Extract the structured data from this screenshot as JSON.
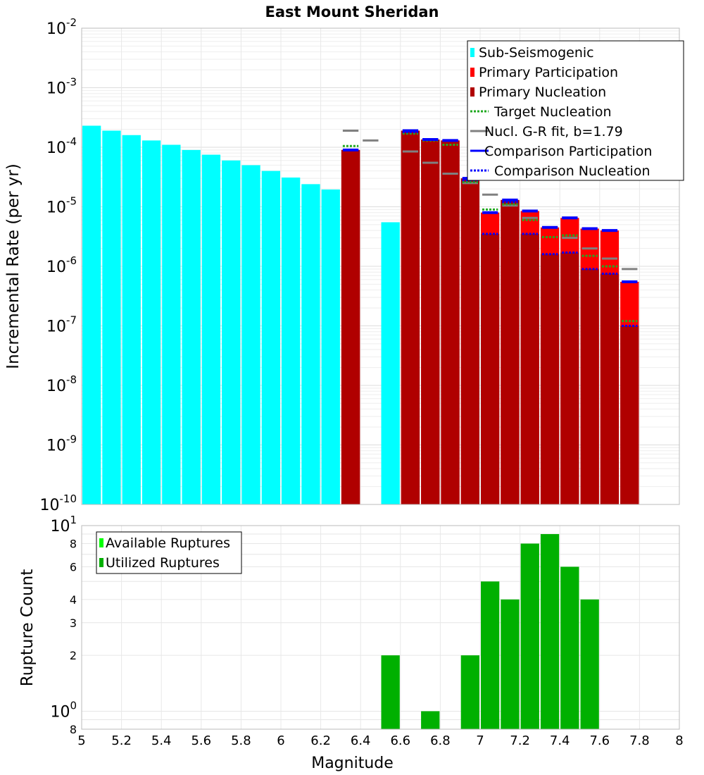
{
  "chart_data": [
    {
      "type": "bar",
      "title": "East Mount Sheridan",
      "xlabel": "Magnitude",
      "ylabel": "Incremental Rate (per yr)",
      "yscale": "log",
      "xlim": [
        5,
        8
      ],
      "ylim": [
        1e-10,
        0.01
      ],
      "x_ticks": [
        "5",
        "5.2",
        "5.4",
        "5.6",
        "5.8",
        "6",
        "6.2",
        "6.4",
        "6.6",
        "6.8",
        "7",
        "7.2",
        "7.4",
        "7.6",
        "7.8",
        "8"
      ],
      "y_ticks": [
        {
          "base": "10",
          "exp": "-10"
        },
        {
          "base": "10",
          "exp": "-9"
        },
        {
          "base": "10",
          "exp": "-8"
        },
        {
          "base": "10",
          "exp": "-7"
        },
        {
          "base": "10",
          "exp": "-6"
        },
        {
          "base": "10",
          "exp": "-5"
        },
        {
          "base": "10",
          "exp": "-4"
        },
        {
          "base": "10",
          "exp": "-3"
        },
        {
          "base": "10",
          "exp": "-2"
        }
      ],
      "legend": [
        {
          "label": "Sub-Seismogenic",
          "color": "#00ffff",
          "style": "bar"
        },
        {
          "label": "Primary Participation",
          "color": "#ff0000",
          "style": "bar"
        },
        {
          "label": "Primary Nucleation",
          "color": "#b00000",
          "style": "bar"
        },
        {
          "label": "Target Nucleation",
          "color": "#22aa22",
          "style": "dotted"
        },
        {
          "label": "Nucl. G-R fit, b=1.79",
          "color": "#808080",
          "style": "line"
        },
        {
          "label": "Comparison Participation",
          "color": "#0000ff",
          "style": "line"
        },
        {
          "label": "Comparison Nucleation",
          "color": "#0000ff",
          "style": "dotted"
        }
      ],
      "legend_position": "top-right",
      "sub_seismogenic": {
        "x": [
          5.05,
          5.15,
          5.25,
          5.35,
          5.45,
          5.55,
          5.65,
          5.75,
          5.85,
          5.95,
          6.05,
          6.15,
          6.25,
          6.55
        ],
        "values": [
          0.00023,
          0.00019,
          0.00016,
          0.00013,
          0.00011,
          9e-05,
          7.5e-05,
          6e-05,
          5e-05,
          4e-05,
          3.1e-05,
          2.4e-05,
          1.95e-05,
          5.5e-06
        ]
      },
      "series": [
        {
          "name": "Primary Participation",
          "x": [
            6.35,
            6.65,
            6.75,
            6.85,
            6.95,
            7.05,
            7.15,
            7.25,
            7.35,
            7.45,
            7.55,
            7.65,
            7.75
          ],
          "values": [
            9e-05,
            0.00019,
            0.000135,
            0.00013,
            3e-05,
            8e-06,
            1.3e-05,
            8.5e-06,
            4.5e-06,
            6.5e-06,
            4.3e-06,
            4e-06,
            5.5e-07
          ]
        },
        {
          "name": "Primary Nucleation",
          "x": [
            6.35,
            6.65,
            6.75,
            6.85,
            6.95,
            7.05,
            7.15,
            7.25,
            7.35,
            7.45,
            7.55,
            7.65,
            7.75
          ],
          "values": [
            9e-05,
            0.00019,
            0.000135,
            0.00013,
            3e-05,
            3.5e-06,
            1.3e-05,
            3.5e-06,
            1.6e-06,
            1.7e-06,
            9e-07,
            7.5e-07,
            1e-07
          ]
        },
        {
          "name": "Target Nucleation",
          "x": [
            6.35,
            6.65,
            6.75,
            6.85,
            6.95,
            7.05,
            7.15,
            7.25,
            7.35,
            7.45,
            7.55,
            7.65,
            7.75
          ],
          "values": [
            0.000105,
            0.00017,
            0.00013,
            0.00011,
            2.6e-05,
            9e-06,
            1.1e-05,
            6e-06,
            3.1e-06,
            3.3e-06,
            1.5e-06,
            1e-06,
            1.2e-07
          ]
        },
        {
          "name": "Nucl. G-R fit, b=1.79",
          "x": [
            6.35,
            6.45,
            6.65,
            6.75,
            6.85,
            6.95,
            7.05,
            7.15,
            7.25,
            7.35,
            7.45,
            7.55,
            7.65,
            7.75
          ],
          "values": [
            0.00019,
            0.00013,
            8.5e-05,
            5.5e-05,
            3.6e-05,
            2.5e-05,
            1.6e-05,
            1.05e-05,
            6.5e-06,
            4.5e-06,
            3e-06,
            2e-06,
            1.35e-06,
            9e-07
          ]
        },
        {
          "name": "Comparison Participation",
          "x": [
            6.35,
            6.65,
            6.75,
            6.85,
            6.95,
            7.05,
            7.15,
            7.25,
            7.35,
            7.45,
            7.55,
            7.65,
            7.75
          ],
          "values": [
            9e-05,
            0.00019,
            0.000135,
            0.00013,
            3e-05,
            8e-06,
            1.3e-05,
            8.5e-06,
            4.5e-06,
            6.5e-06,
            4.3e-06,
            4e-06,
            5.5e-07
          ]
        },
        {
          "name": "Comparison Nucleation",
          "x": [
            6.35,
            6.65,
            6.75,
            6.85,
            6.95,
            7.05,
            7.15,
            7.25,
            7.35,
            7.45,
            7.55,
            7.65,
            7.75
          ],
          "values": [
            9e-05,
            0.00018,
            0.000135,
            0.00013,
            2.8e-05,
            3.5e-06,
            1.2e-05,
            3.5e-06,
            1.6e-06,
            1.7e-06,
            9e-07,
            7.5e-07,
            1e-07
          ]
        }
      ]
    },
    {
      "type": "bar",
      "xlabel": "Magnitude",
      "ylabel": "Rupture Count",
      "yscale": "log",
      "xlim": [
        5,
        8
      ],
      "ylim": [
        0.8,
        10
      ],
      "x_ticks": [
        "5",
        "5.2",
        "5.4",
        "5.6",
        "5.8",
        "6",
        "6.2",
        "6.4",
        "6.6",
        "6.8",
        "7",
        "7.2",
        "7.4",
        "7.6",
        "7.8",
        "8"
      ],
      "y_ticks": [
        {
          "value": 0.8,
          "label": "8",
          "exp": ""
        },
        {
          "value": 1,
          "label": "10",
          "exp": "0"
        },
        {
          "value": 2,
          "label": "2",
          "exp": ""
        },
        {
          "value": 3,
          "label": "3",
          "exp": ""
        },
        {
          "value": 4,
          "label": "4",
          "exp": ""
        },
        {
          "value": 6,
          "label": "6",
          "exp": ""
        },
        {
          "value": 8,
          "label": "8",
          "exp": ""
        },
        {
          "value": 10,
          "label": "10",
          "exp": "1"
        }
      ],
      "legend": [
        {
          "label": "Available Ruptures",
          "color": "#00ff00",
          "style": "bar"
        },
        {
          "label": "Utilized Ruptures",
          "color": "#00b000",
          "style": "bar"
        }
      ],
      "legend_position": "top-left",
      "series": [
        {
          "name": "Utilized Ruptures",
          "x": [
            6.55,
            6.75,
            6.95,
            7.05,
            7.15,
            7.25,
            7.35,
            7.45,
            7.55
          ],
          "values": [
            2,
            1,
            2,
            5,
            4,
            8,
            9,
            6,
            4
          ]
        }
      ]
    }
  ]
}
